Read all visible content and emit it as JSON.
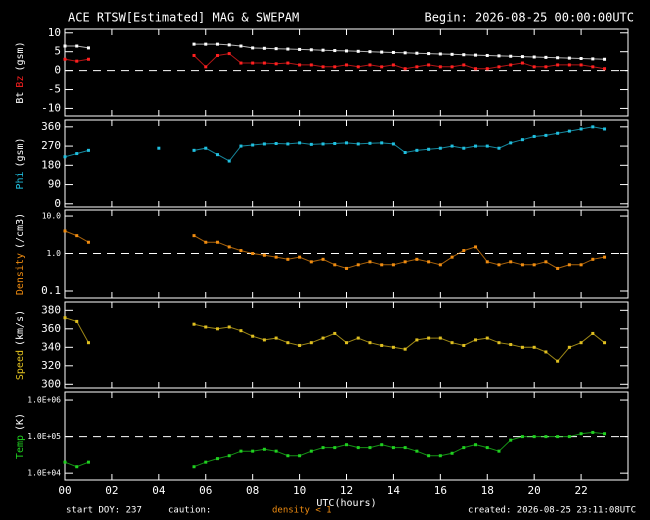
{
  "header": {
    "title": "ACE RTSW[Estimated] MAG & SWEPAM",
    "begin": "Begin: 2026-08-25 00:00:00UTC"
  },
  "footer": {
    "start": "start DOY: 237",
    "caution": "caution:",
    "caution_note": "density < 1",
    "created": "created: 2026-08-25 23:11:08UTC"
  },
  "chart_data": [
    {
      "type": "line",
      "ylabel": "(gsm)",
      "xlim": [
        0,
        24
      ],
      "ylim": [
        -12,
        11
      ],
      "yticks": [
        -10,
        -5,
        0,
        5,
        10
      ],
      "hline": 0,
      "x": [
        0,
        0.5,
        1,
        1.5,
        2,
        2.5,
        3,
        3.5,
        4,
        4.5,
        5,
        5.5,
        6,
        6.5,
        7,
        7.5,
        8,
        8.5,
        9,
        9.5,
        10,
        10.5,
        11,
        11.5,
        12,
        12.5,
        13,
        13.5,
        14,
        14.5,
        15,
        15.5,
        16,
        16.5,
        17,
        17.5,
        18,
        18.5,
        19,
        19.5,
        20,
        20.5,
        21,
        21.5,
        22,
        22.5,
        23
      ],
      "series": [
        {
          "name": "Bt",
          "color": "#ffffff",
          "values": [
            6.5,
            6.5,
            6,
            null,
            null,
            null,
            null,
            null,
            null,
            null,
            null,
            7,
            7,
            7,
            6.8,
            6.5,
            6,
            5.9,
            5.8,
            5.7,
            5.6,
            5.5,
            5.4,
            5.3,
            5.2,
            5.1,
            5,
            4.9,
            4.8,
            4.7,
            4.6,
            4.5,
            4.4,
            4.3,
            4.2,
            4.1,
            4,
            3.9,
            3.8,
            3.7,
            3.6,
            3.5,
            3.4,
            3.3,
            3.2,
            3.1,
            3
          ]
        },
        {
          "name": "Bz",
          "color": "#ff2020",
          "values": [
            3,
            2.5,
            3,
            null,
            null,
            null,
            null,
            null,
            null,
            null,
            null,
            4,
            1,
            4,
            4.5,
            2,
            2,
            2,
            1.8,
            2,
            1.5,
            1.5,
            1,
            1,
            1.5,
            1,
            1.5,
            1,
            1.5,
            0.5,
            1,
            1.5,
            1,
            1,
            1.5,
            0.5,
            0.5,
            1,
            1.5,
            2,
            1,
            1,
            1.5,
            1.5,
            1.5,
            1,
            0.5
          ]
        }
      ]
    },
    {
      "type": "line",
      "ylabel": "(gsm)",
      "xlim": [
        0,
        24
      ],
      "ylim": [
        -15,
        392
      ],
      "yticks": [
        0,
        90,
        180,
        270,
        360
      ],
      "x": [
        0,
        0.5,
        1,
        1.5,
        2,
        2.5,
        3,
        3.5,
        4,
        4.5,
        5,
        5.5,
        6,
        6.5,
        7,
        7.5,
        8,
        8.5,
        9,
        9.5,
        10,
        10.5,
        11,
        11.5,
        12,
        12.5,
        13,
        13.5,
        14,
        14.5,
        15,
        15.5,
        16,
        16.5,
        17,
        17.5,
        18,
        18.5,
        19,
        19.5,
        20,
        20.5,
        21,
        21.5,
        22,
        22.5,
        23
      ],
      "series": [
        {
          "name": "Phi",
          "color": "#20c0e0",
          "values": [
            220,
            235,
            250,
            null,
            null,
            null,
            null,
            null,
            260,
            null,
            null,
            250,
            260,
            230,
            200,
            270,
            275,
            280,
            282,
            280,
            285,
            278,
            280,
            282,
            285,
            280,
            283,
            285,
            280,
            240,
            250,
            255,
            260,
            270,
            260,
            270,
            270,
            260,
            285,
            300,
            315,
            320,
            330,
            340,
            350,
            360,
            350
          ]
        }
      ]
    },
    {
      "type": "line",
      "ylabel": "(/cm3)",
      "log": true,
      "xlim": [
        0,
        24
      ],
      "ylim": [
        0.065,
        14.5
      ],
      "yticks": [
        {
          "value": 10,
          "label": "10.0"
        },
        {
          "value": 1,
          "label": "1.0"
        },
        0.1
      ],
      "hline": 1,
      "x": [
        0,
        0.5,
        1,
        1.5,
        2,
        2.5,
        3,
        3.5,
        4,
        4.5,
        5,
        5.5,
        6,
        6.5,
        7,
        7.5,
        8,
        8.5,
        9,
        9.5,
        10,
        10.5,
        11,
        11.5,
        12,
        12.5,
        13,
        13.5,
        14,
        14.5,
        15,
        15.5,
        16,
        16.5,
        17,
        17.5,
        18,
        18.5,
        19,
        19.5,
        20,
        20.5,
        21,
        21.5,
        22,
        22.5,
        23
      ],
      "series": [
        {
          "name": "Density",
          "color": "#f08c10",
          "values": [
            4,
            3,
            2,
            null,
            null,
            null,
            null,
            null,
            null,
            null,
            null,
            3,
            2,
            2,
            1.5,
            1.2,
            1,
            0.9,
            0.8,
            0.7,
            0.8,
            0.6,
            0.7,
            0.5,
            0.4,
            0.5,
            0.6,
            0.5,
            0.5,
            0.6,
            0.7,
            0.6,
            0.5,
            0.8,
            1.2,
            1.5,
            0.6,
            0.5,
            0.6,
            0.5,
            0.5,
            0.6,
            0.4,
            0.5,
            0.5,
            0.7,
            0.8
          ]
        }
      ]
    },
    {
      "type": "line",
      "ylabel": "(km/s)",
      "xlim": [
        0,
        24
      ],
      "ylim": [
        296,
        389
      ],
      "yticks": [
        300,
        320,
        340,
        360,
        380
      ],
      "x": [
        0,
        0.5,
        1,
        1.5,
        2,
        2.5,
        3,
        3.5,
        4,
        4.5,
        5,
        5.5,
        6,
        6.5,
        7,
        7.5,
        8,
        8.5,
        9,
        9.5,
        10,
        10.5,
        11,
        11.5,
        12,
        12.5,
        13,
        13.5,
        14,
        14.5,
        15,
        15.5,
        16,
        16.5,
        17,
        17.5,
        18,
        18.5,
        19,
        19.5,
        20,
        20.5,
        21,
        21.5,
        22,
        22.5,
        23
      ],
      "series": [
        {
          "name": "Speed",
          "color": "#e0c020",
          "values": [
            372,
            368,
            345,
            null,
            null,
            null,
            null,
            null,
            null,
            null,
            null,
            365,
            362,
            360,
            362,
            358,
            352,
            348,
            350,
            345,
            342,
            345,
            350,
            355,
            345,
            350,
            345,
            342,
            340,
            338,
            348,
            350,
            350,
            345,
            342,
            348,
            350,
            345,
            343,
            340,
            340,
            335,
            325,
            340,
            345,
            355,
            345
          ]
        }
      ]
    },
    {
      "type": "line",
      "ylabel": "(K)",
      "log": true,
      "xlim": [
        0,
        24
      ],
      "ylim": [
        6500,
        1660000
      ],
      "yticks": [
        {
          "value": 10000,
          "label": "1.0E+04"
        },
        {
          "value": 100000,
          "label": "1.0E+05"
        },
        {
          "value": 1000000,
          "label": "1.0E+06"
        }
      ],
      "hline": 100000,
      "xlabel": "UTC(hours)",
      "xticks": [
        {
          "value": 0,
          "label": "00"
        },
        {
          "value": 2,
          "label": "02"
        },
        {
          "value": 4,
          "label": "04"
        },
        {
          "value": 6,
          "label": "06"
        },
        {
          "value": 8,
          "label": "08"
        },
        {
          "value": 10,
          "label": "10"
        },
        {
          "value": 12,
          "label": "12"
        },
        {
          "value": 14,
          "label": "14"
        },
        {
          "value": 16,
          "label": "16"
        },
        {
          "value": 18,
          "label": "18"
        },
        {
          "value": 20,
          "label": "20"
        },
        {
          "value": 22,
          "label": "22"
        }
      ],
      "x": [
        0,
        0.5,
        1,
        1.5,
        2,
        2.5,
        3,
        3.5,
        4,
        4.5,
        5,
        5.5,
        6,
        6.5,
        7,
        7.5,
        8,
        8.5,
        9,
        9.5,
        10,
        10.5,
        11,
        11.5,
        12,
        12.5,
        13,
        13.5,
        14,
        14.5,
        15,
        15.5,
        16,
        16.5,
        17,
        17.5,
        18,
        18.5,
        19,
        19.5,
        20,
        20.5,
        21,
        21.5,
        22,
        22.5,
        23
      ],
      "series": [
        {
          "name": "Temp",
          "color": "#20d020",
          "values": [
            20000,
            15000,
            20000,
            null,
            null,
            null,
            null,
            null,
            null,
            null,
            null,
            15000,
            20000,
            25000,
            30000,
            40000,
            40000,
            45000,
            40000,
            30000,
            30000,
            40000,
            50000,
            50000,
            60000,
            50000,
            50000,
            60000,
            50000,
            50000,
            40000,
            30000,
            30000,
            35000,
            50000,
            60000,
            50000,
            40000,
            80000,
            100000,
            100000,
            100000,
            100000,
            100000,
            120000,
            130000,
            120000
          ]
        }
      ]
    }
  ]
}
